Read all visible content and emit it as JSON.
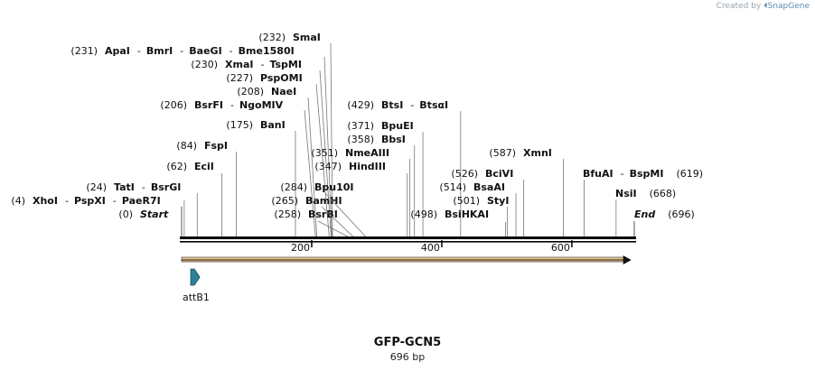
{
  "credit": {
    "prefix": "Created by",
    "brand": "SnapGene"
  },
  "sequence": {
    "name": "GFP-GCN5",
    "length_label": "696 bp",
    "length": 696
  },
  "ruler": {
    "ticks": [
      200,
      400,
      600
    ]
  },
  "features": [
    {
      "name": "attB1",
      "start": 0,
      "end": 21,
      "direction": "forward",
      "color": "#2e7f9a"
    }
  ],
  "overview_arrow": {
    "start": 0,
    "end": 690,
    "color": "#f0c890"
  },
  "site_groups": [
    {
      "pos": 0,
      "pos_label": "(0)",
      "names": [
        "Start"
      ],
      "italic": true,
      "side": "left"
    },
    {
      "pos": 4,
      "pos_label": "(4)",
      "names": [
        "XhoI",
        "PspXI",
        "PaeR7I"
      ],
      "side": "left"
    },
    {
      "pos": 24,
      "pos_label": "(24)",
      "names": [
        "TatI",
        "BsrGI"
      ],
      "side": "left"
    },
    {
      "pos": 62,
      "pos_label": "(62)",
      "names": [
        "EciI"
      ],
      "side": "left"
    },
    {
      "pos": 84,
      "pos_label": "(84)",
      "names": [
        "FspI"
      ],
      "side": "left"
    },
    {
      "pos": 175,
      "pos_label": "(175)",
      "names": [
        "BanI"
      ],
      "side": "left"
    },
    {
      "pos": 206,
      "pos_label": "(206)",
      "names": [
        "BsrFI",
        "NgoMIV"
      ],
      "side": "left"
    },
    {
      "pos": 208,
      "pos_label": "(208)",
      "names": [
        "NaeI"
      ],
      "side": "left"
    },
    {
      "pos": 227,
      "pos_label": "(227)",
      "names": [
        "PspOMI"
      ],
      "side": "left"
    },
    {
      "pos": 230,
      "pos_label": "(230)",
      "names": [
        "XmaI",
        "TspMI"
      ],
      "side": "left"
    },
    {
      "pos": 231,
      "pos_label": "(231)",
      "names": [
        "ApaI",
        "BmrI",
        "BaeGI",
        "Bme1580I"
      ],
      "side": "left"
    },
    {
      "pos": 232,
      "pos_label": "(232)",
      "names": [
        "SmaI"
      ],
      "side": "left"
    },
    {
      "pos": 258,
      "pos_label": "(258)",
      "names": [
        "BsrBI"
      ],
      "side": "left"
    },
    {
      "pos": 265,
      "pos_label": "(265)",
      "names": [
        "BamHI"
      ],
      "side": "left"
    },
    {
      "pos": 284,
      "pos_label": "(284)",
      "names": [
        "Bpu10I"
      ],
      "side": "left"
    },
    {
      "pos": 347,
      "pos_label": "(347)",
      "names": [
        "HindIII"
      ],
      "side": "left"
    },
    {
      "pos": 351,
      "pos_label": "(351)",
      "names": [
        "NmeAIII"
      ],
      "side": "left"
    },
    {
      "pos": 358,
      "pos_label": "(358)",
      "names": [
        "BbsI"
      ],
      "side": "left"
    },
    {
      "pos": 371,
      "pos_label": "(371)",
      "names": [
        "BpuEI"
      ],
      "side": "left"
    },
    {
      "pos": 429,
      "pos_label": "(429)",
      "names": [
        "BtsI",
        "BtsαI"
      ],
      "side": "left"
    },
    {
      "pos": 498,
      "pos_label": "(498)",
      "names": [
        "BsiHKAI"
      ],
      "side": "left"
    },
    {
      "pos": 501,
      "pos_label": "(501)",
      "names": [
        "StyI"
      ],
      "side": "left"
    },
    {
      "pos": 514,
      "pos_label": "(514)",
      "names": [
        "BsaAI"
      ],
      "side": "left"
    },
    {
      "pos": 526,
      "pos_label": "(526)",
      "names": [
        "BciVI"
      ],
      "side": "left"
    },
    {
      "pos": 587,
      "pos_label": "(587)",
      "names": [
        "XmnI"
      ],
      "side": "left"
    },
    {
      "pos": 619,
      "pos_label": "(619)",
      "names": [
        "BfuAI",
        "BspMI"
      ],
      "side": "right"
    },
    {
      "pos": 668,
      "pos_label": "(668)",
      "names": [
        "NsiI"
      ],
      "side": "right"
    },
    {
      "pos": 696,
      "pos_label": "(696)",
      "names": [
        "End"
      ],
      "italic": true,
      "side": "right"
    }
  ]
}
